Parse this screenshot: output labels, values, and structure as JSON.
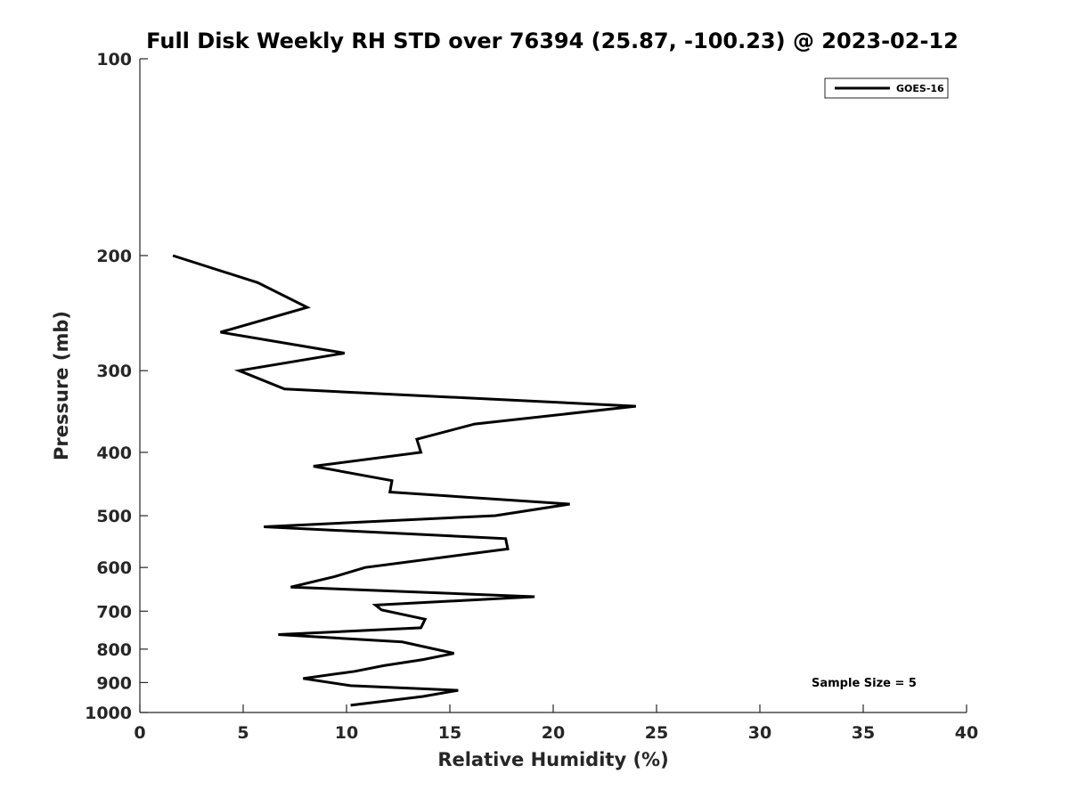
{
  "chart_data": {
    "type": "line",
    "title": "Full Disk Weekly RH STD over 76394 (25.87, -100.23) @ 2023-02-12",
    "xlabel": "Relative Humidity (%)",
    "ylabel": "Pressure (mb)",
    "xlim": [
      0,
      40
    ],
    "ylim": [
      100,
      1000
    ],
    "yscale": "log",
    "y_reversed": true,
    "x_ticks": [
      "0",
      "5",
      "10",
      "15",
      "20",
      "25",
      "30",
      "35",
      "40"
    ],
    "y_ticks": [
      "100",
      "200",
      "300",
      "400",
      "500",
      "600",
      "700",
      "800",
      "900",
      "1000"
    ],
    "grid": false,
    "legend_position": "top-right",
    "annotation": "Sample Size = 5",
    "series": [
      {
        "name": "GOES-16",
        "color": "#000000",
        "points": [
          {
            "x": 1.6,
            "y": 200
          },
          {
            "x": 5.7,
            "y": 220
          },
          {
            "x": 8.1,
            "y": 240
          },
          {
            "x": 3.9,
            "y": 262
          },
          {
            "x": 9.9,
            "y": 282
          },
          {
            "x": 4.8,
            "y": 300
          },
          {
            "x": 7.0,
            "y": 320
          },
          {
            "x": 24.0,
            "y": 340
          },
          {
            "x": 16.2,
            "y": 362
          },
          {
            "x": 13.4,
            "y": 382
          },
          {
            "x": 13.6,
            "y": 400
          },
          {
            "x": 8.4,
            "y": 420
          },
          {
            "x": 12.2,
            "y": 442
          },
          {
            "x": 12.1,
            "y": 460
          },
          {
            "x": 20.8,
            "y": 480
          },
          {
            "x": 17.2,
            "y": 500
          },
          {
            "x": 6.0,
            "y": 520
          },
          {
            "x": 17.7,
            "y": 542
          },
          {
            "x": 17.8,
            "y": 562
          },
          {
            "x": 10.9,
            "y": 600
          },
          {
            "x": 9.4,
            "y": 620
          },
          {
            "x": 7.3,
            "y": 643
          },
          {
            "x": 19.1,
            "y": 665
          },
          {
            "x": 11.4,
            "y": 685
          },
          {
            "x": 11.7,
            "y": 697
          },
          {
            "x": 13.8,
            "y": 720
          },
          {
            "x": 13.6,
            "y": 742
          },
          {
            "x": 6.7,
            "y": 760
          },
          {
            "x": 12.7,
            "y": 780
          },
          {
            "x": 15.2,
            "y": 812
          },
          {
            "x": 13.7,
            "y": 830
          },
          {
            "x": 11.8,
            "y": 848
          },
          {
            "x": 10.4,
            "y": 865
          },
          {
            "x": 7.9,
            "y": 887
          },
          {
            "x": 10.2,
            "y": 910
          },
          {
            "x": 15.4,
            "y": 925
          },
          {
            "x": 13.7,
            "y": 945
          },
          {
            "x": 10.2,
            "y": 975
          }
        ]
      }
    ]
  }
}
